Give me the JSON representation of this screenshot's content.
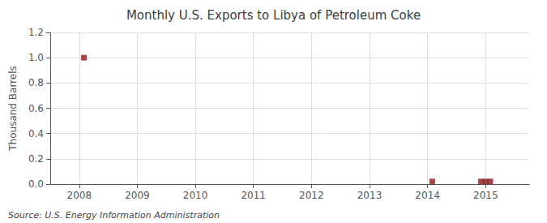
{
  "chart_data": {
    "type": "scatter",
    "title": "Monthly U.S. Exports to Libya of Petroleum Coke",
    "ylabel": "Thousand Barrels",
    "annotations": [
      "Source: U.S. Energy Information Administration"
    ],
    "x": [
      2008.08,
      2014.08,
      2014.92,
      2015.0,
      2015.08
    ],
    "values": [
      1.0,
      0.02,
      0.02,
      0.02,
      0.02
    ],
    "color": "#8B1A1A",
    "marker": "square",
    "xlim": [
      2007.5,
      2015.75
    ],
    "xticks": [
      2008,
      2009,
      2010,
      2011,
      2012,
      2013,
      2014,
      2015
    ],
    "ylim": [
      0.0,
      1.2
    ],
    "yticks": [
      {
        "value": 0.0,
        "label": "0.0"
      },
      0.2,
      0.4,
      0.6,
      0.8,
      {
        "value": 1.0,
        "label": "1.0"
      },
      1.2
    ],
    "grid": true
  }
}
